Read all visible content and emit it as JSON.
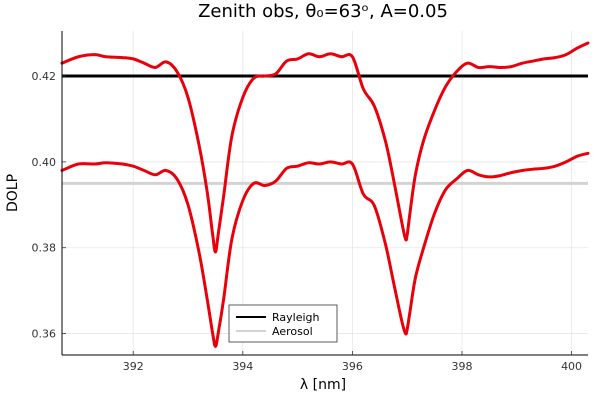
{
  "chart_data": {
    "type": "line",
    "title": "Zenith obs, θ₀=63ᵒ, A=0.05",
    "xlabel": "λ [nm]",
    "ylabel": "DOLP",
    "xlim": [
      390.7,
      400.3
    ],
    "ylim": [
      0.355,
      0.4305
    ],
    "xticks": [
      392,
      394,
      396,
      398,
      400
    ],
    "yticks": [
      0.36,
      0.38,
      0.4,
      0.42
    ],
    "xtick_labels": [
      "392",
      "394",
      "396",
      "398",
      "400"
    ],
    "ytick_labels": [
      "0.36",
      "0.38",
      "0.40",
      "0.42"
    ],
    "grid": true,
    "legend_position": "bottom-center",
    "reference_lines": [
      {
        "name": "Rayleigh",
        "y": 0.42,
        "color": "#000000"
      },
      {
        "name": "Aerosol",
        "y": 0.395,
        "color": "#d3d3d3"
      }
    ],
    "series": [
      {
        "color": "#e8000b",
        "x": [
          390.7,
          391.0,
          391.3,
          391.5,
          391.8,
          392.0,
          392.2,
          392.4,
          392.6,
          392.8,
          393.0,
          393.2,
          393.35,
          393.45,
          393.5,
          393.55,
          393.65,
          393.8,
          394.0,
          394.2,
          394.4,
          394.6,
          394.8,
          395.0,
          395.2,
          395.4,
          395.6,
          395.8,
          396.0,
          396.2,
          396.4,
          396.6,
          396.75,
          396.9,
          396.97,
          397.0,
          397.05,
          397.15,
          397.3,
          397.5,
          397.7,
          397.9,
          398.1,
          398.3,
          398.5,
          398.7,
          398.9,
          399.1,
          399.3,
          399.5,
          399.7,
          399.9,
          400.1,
          400.3
        ],
        "values": [
          0.423,
          0.4245,
          0.425,
          0.4245,
          0.4243,
          0.424,
          0.423,
          0.422,
          0.4233,
          0.421,
          0.415,
          0.404,
          0.393,
          0.383,
          0.379,
          0.383,
          0.392,
          0.406,
          0.415,
          0.4195,
          0.42,
          0.4205,
          0.4235,
          0.424,
          0.4252,
          0.4245,
          0.4252,
          0.4245,
          0.4245,
          0.417,
          0.413,
          0.405,
          0.396,
          0.386,
          0.382,
          0.383,
          0.388,
          0.397,
          0.405,
          0.412,
          0.4175,
          0.421,
          0.423,
          0.422,
          0.4222,
          0.422,
          0.4222,
          0.423,
          0.4235,
          0.424,
          0.4243,
          0.425,
          0.4265,
          0.4277
        ]
      },
      {
        "color": "#e8000b",
        "x": [
          390.7,
          391.0,
          391.3,
          391.5,
          391.8,
          392.0,
          392.2,
          392.4,
          392.6,
          392.8,
          393.0,
          393.2,
          393.35,
          393.45,
          393.5,
          393.55,
          393.65,
          393.8,
          394.0,
          394.2,
          394.4,
          394.6,
          394.8,
          395.0,
          395.2,
          395.4,
          395.6,
          395.8,
          396.0,
          396.2,
          396.4,
          396.6,
          396.75,
          396.9,
          396.97,
          397.0,
          397.05,
          397.15,
          397.3,
          397.5,
          397.7,
          397.9,
          398.1,
          398.3,
          398.5,
          398.7,
          398.9,
          399.1,
          399.3,
          399.5,
          399.7,
          399.9,
          400.1,
          400.3
        ],
        "values": [
          0.398,
          0.3995,
          0.3995,
          0.3998,
          0.3995,
          0.399,
          0.398,
          0.397,
          0.398,
          0.396,
          0.39,
          0.379,
          0.368,
          0.36,
          0.357,
          0.36,
          0.368,
          0.382,
          0.391,
          0.395,
          0.3945,
          0.3955,
          0.3985,
          0.399,
          0.3998,
          0.3995,
          0.4,
          0.3995,
          0.3995,
          0.3925,
          0.3898,
          0.381,
          0.372,
          0.363,
          0.36,
          0.361,
          0.365,
          0.373,
          0.38,
          0.388,
          0.3935,
          0.396,
          0.398,
          0.397,
          0.3965,
          0.3968,
          0.3975,
          0.398,
          0.3983,
          0.3985,
          0.399,
          0.4,
          0.4013,
          0.402
        ]
      }
    ]
  }
}
